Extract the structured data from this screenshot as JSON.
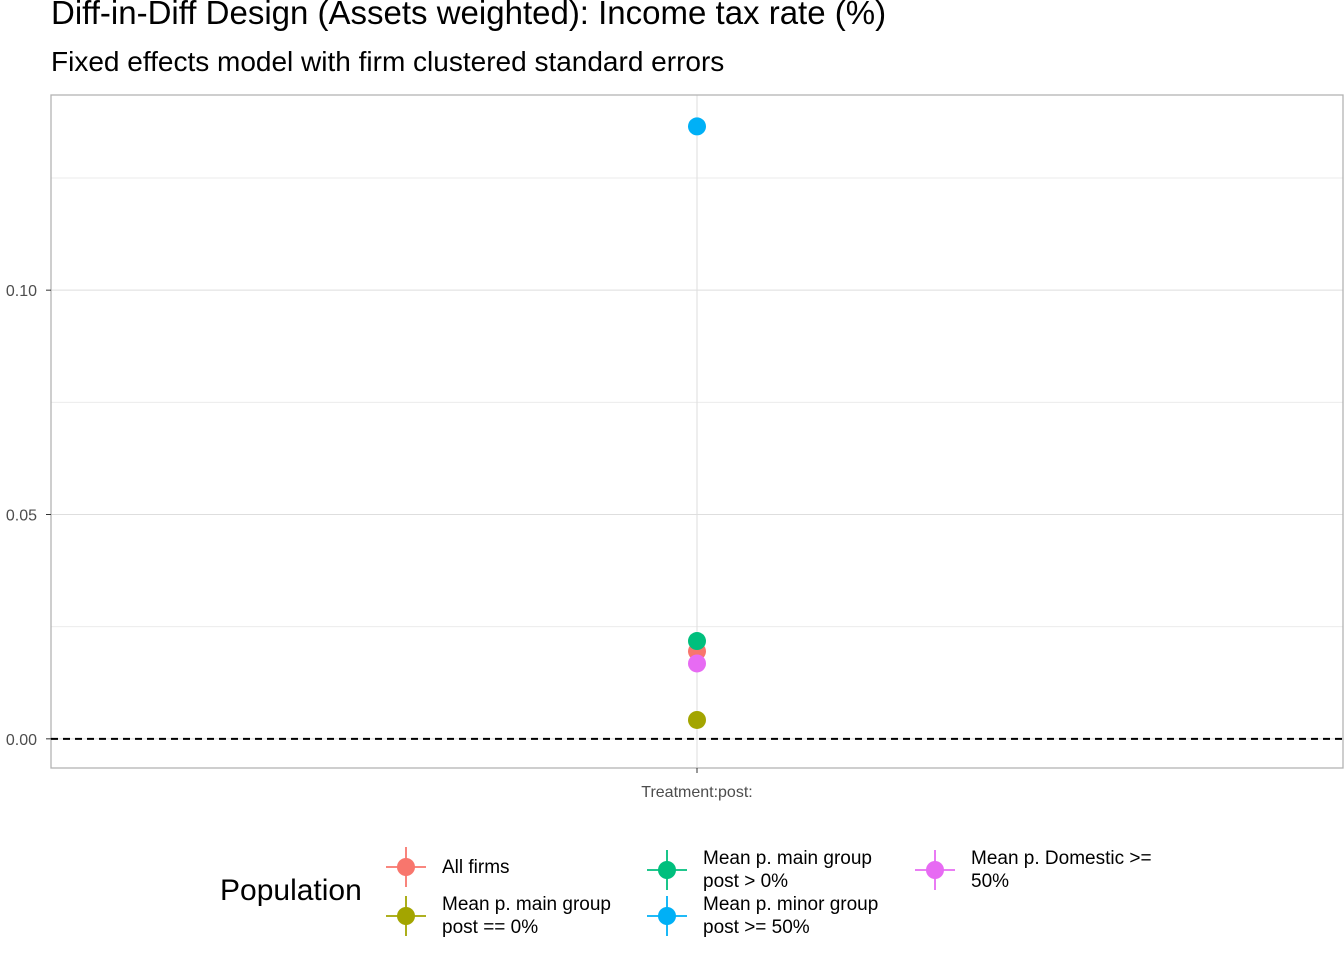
{
  "chart_data": {
    "type": "scatter",
    "title": "Diff-in-Diff Design (Assets weighted): Income tax rate  (%)",
    "subtitle": "Fixed effects model with firm clustered standard errors",
    "xlabel": "",
    "ylabel": "",
    "categories": [
      "Treatment:post:"
    ],
    "ylim": [
      -0.0065,
      0.1435
    ],
    "yticks": [
      0.0,
      0.05,
      0.1
    ],
    "ytick_labels": [
      "0.00",
      "0.05",
      "0.10"
    ],
    "reference_line": {
      "y": 0,
      "style": "dashed"
    },
    "grid": true,
    "legend": {
      "title": "Population",
      "position": "bottom"
    },
    "series": [
      {
        "name": "All firms",
        "color": "#F8766D",
        "x": "Treatment:post:",
        "value": 0.0195
      },
      {
        "name": "Mean p. main group\npost == 0%",
        "color": "#A3A500",
        "x": "Treatment:post:",
        "value": 0.0042
      },
      {
        "name": "Mean p. main group\npost > 0%",
        "color": "#00BF7D",
        "x": "Treatment:post:",
        "value": 0.0218
      },
      {
        "name": "Mean p. minor group\npost >= 50%",
        "color": "#00B0F6",
        "x": "Treatment:post:",
        "value": 0.1365
      },
      {
        "name": "Mean p. Domestic >=\n50%",
        "color": "#E76BF3",
        "x": "Treatment:post:",
        "value": 0.0168
      }
    ]
  }
}
